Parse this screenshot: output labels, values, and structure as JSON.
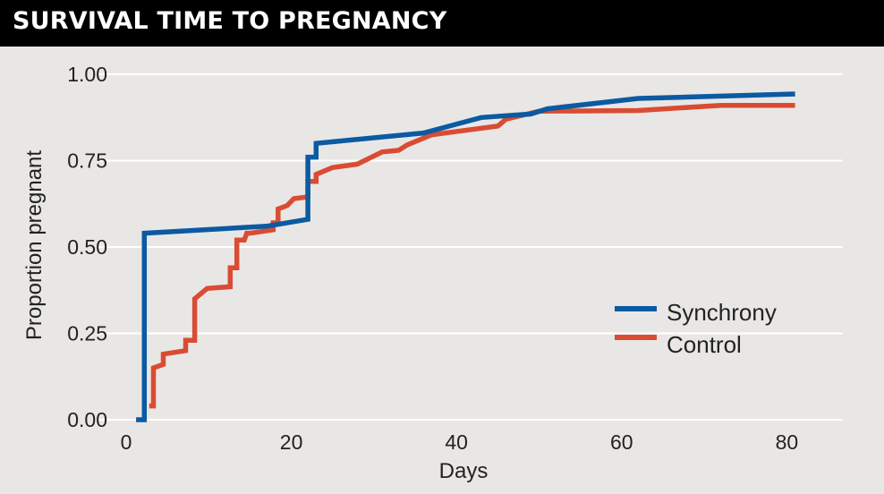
{
  "title": "SURVIVAL TIME TO PREGNANCY",
  "chart_data": {
    "type": "line",
    "step": true,
    "xlabel": "Days",
    "ylabel": "Proportion pregnant",
    "xlim": [
      0,
      82
    ],
    "ylim": [
      0,
      1
    ],
    "xticks": [
      "0",
      "20",
      "40",
      "60",
      "80"
    ],
    "yticks": [
      "0.00",
      "0.25",
      "0.50",
      "0.75",
      "1.00"
    ],
    "grid": "horizontal",
    "legend_position": "right",
    "series": [
      {
        "name": "Synchrony",
        "color": "#0b5aa2",
        "points": [
          [
            1.2,
            0.0
          ],
          [
            2.2,
            0.0
          ],
          [
            2.2,
            0.54
          ],
          [
            17,
            0.56
          ],
          [
            22,
            0.58
          ],
          [
            22,
            0.76
          ],
          [
            23,
            0.76
          ],
          [
            23,
            0.8
          ],
          [
            36,
            0.83
          ],
          [
            43,
            0.875
          ],
          [
            49,
            0.885
          ],
          [
            51,
            0.9
          ],
          [
            62,
            0.93
          ],
          [
            81,
            0.943
          ]
        ]
      },
      {
        "name": "Control",
        "color": "#d94c33",
        "points": [
          [
            2.8,
            0.04
          ],
          [
            3.3,
            0.04
          ],
          [
            3.3,
            0.15
          ],
          [
            4.5,
            0.16
          ],
          [
            4.5,
            0.19
          ],
          [
            7.2,
            0.2
          ],
          [
            7.2,
            0.23
          ],
          [
            8.3,
            0.23
          ],
          [
            8.3,
            0.35
          ],
          [
            9.8,
            0.38
          ],
          [
            12.6,
            0.385
          ],
          [
            12.6,
            0.44
          ],
          [
            13.4,
            0.44
          ],
          [
            13.4,
            0.52
          ],
          [
            14.3,
            0.52
          ],
          [
            14.6,
            0.54
          ],
          [
            15.0,
            0.54
          ],
          [
            17.8,
            0.55
          ],
          [
            17.8,
            0.57
          ],
          [
            18.4,
            0.57
          ],
          [
            18.4,
            0.61
          ],
          [
            19.5,
            0.62
          ],
          [
            20.3,
            0.64
          ],
          [
            22.0,
            0.645
          ],
          [
            22.0,
            0.69
          ],
          [
            23.0,
            0.69
          ],
          [
            23.0,
            0.71
          ],
          [
            24.0,
            0.72
          ],
          [
            25.0,
            0.73
          ],
          [
            28.0,
            0.74
          ],
          [
            31.0,
            0.775
          ],
          [
            33.0,
            0.78
          ],
          [
            34.0,
            0.795
          ],
          [
            37.0,
            0.825
          ],
          [
            45.0,
            0.85
          ],
          [
            46.0,
            0.87
          ],
          [
            50.0,
            0.893
          ],
          [
            62.0,
            0.895
          ],
          [
            72.0,
            0.91
          ],
          [
            81.0,
            0.91
          ]
        ]
      }
    ]
  }
}
